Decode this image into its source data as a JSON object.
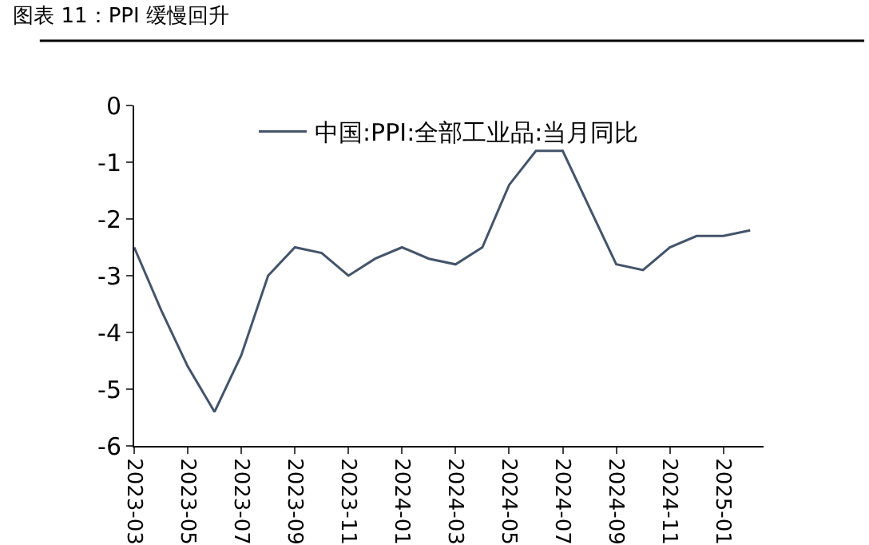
{
  "chart_data": {
    "type": "line",
    "title": "图表 11：PPI 缓慢回升",
    "categories": [
      "2023-03",
      null,
      "2023-05",
      null,
      "2023-07",
      null,
      "2023-09",
      null,
      "2023-11",
      null,
      "2024-01",
      null,
      "2024-03",
      null,
      "2024-05",
      null,
      "2024-07",
      null,
      "2024-09",
      null,
      "2024-11",
      null,
      "2025-01",
      null
    ],
    "series": [
      {
        "name": "中国:PPI:全部工业品:当月同比",
        "color": "#44546a",
        "values": [
          -2.5,
          -3.6,
          -4.6,
          -5.4,
          -4.4,
          -3.0,
          -2.5,
          -2.6,
          -3.0,
          -2.7,
          -2.5,
          -2.7,
          -2.8,
          -2.5,
          -1.4,
          -0.8,
          -0.8,
          -1.8,
          -2.8,
          -2.9,
          -2.5,
          -2.3,
          -2.3,
          -2.2
        ]
      }
    ],
    "ylim": [
      -6,
      0
    ],
    "yticks": [
      0,
      -1,
      -2,
      -3,
      -4,
      -5,
      -6
    ],
    "grid": false,
    "legend": "top",
    "marker": "none",
    "line_style": "solid"
  }
}
